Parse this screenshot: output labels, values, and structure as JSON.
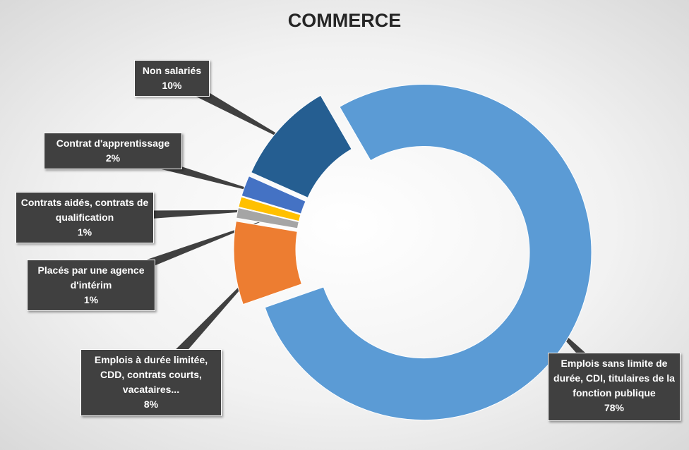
{
  "chart_data": {
    "type": "donut",
    "title": "COMMERCE",
    "categories": [
      "Emplois sans limite de durée, CDI, titulaires de la fonction publique",
      "Emplois à durée limitée, CDD, contrats courts, vacataires...",
      "Placés par une agence d'intérim",
      "Contrats aidés, contrats de qualification",
      "Contrat d'apprentissage",
      "Non salariés"
    ],
    "values": [
      78,
      8,
      1,
      1,
      2,
      10
    ],
    "value_labels": [
      "78%",
      "8%",
      "1%",
      "1%",
      "2%",
      "10%"
    ],
    "colors": [
      "#5b9bd5",
      "#ed7d31",
      "#a5a5a5",
      "#ffc000",
      "#4472c4",
      "#255e91"
    ]
  }
}
